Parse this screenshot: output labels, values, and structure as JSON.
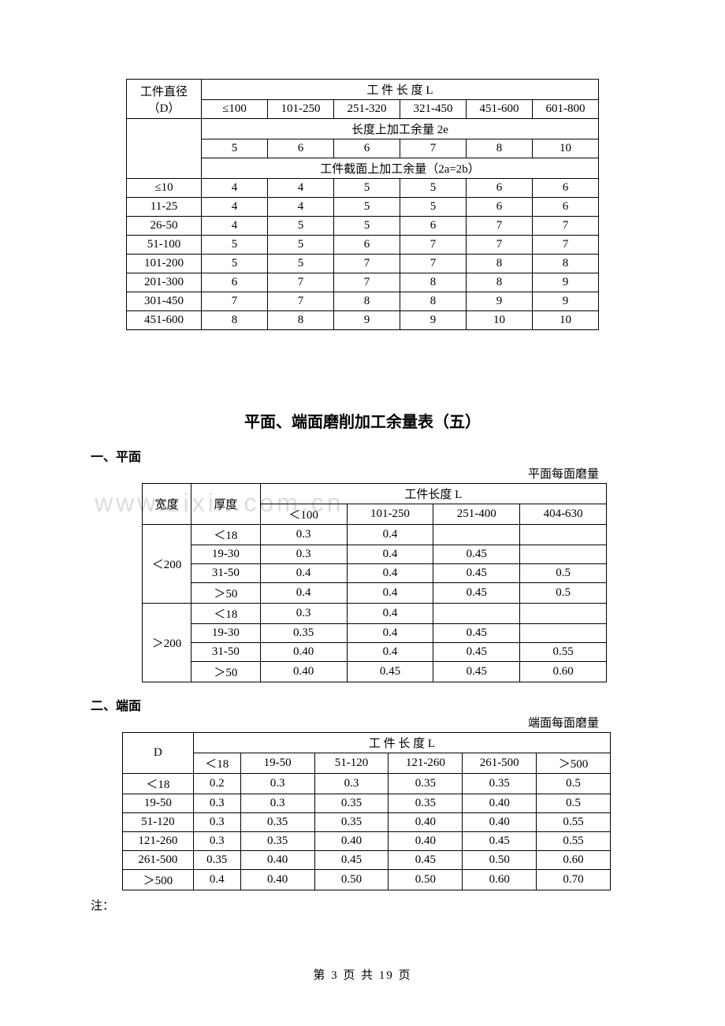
{
  "watermark": "www.zixin.com.cn",
  "table1": {
    "header_d": "工件直径（D）",
    "header_l": "工 件 长 度 L",
    "length_cols": [
      "≤100",
      "101-250",
      "251-320",
      "321-450",
      "451-600",
      "601-800"
    ],
    "row_2e_label": "长度上加工余量 2e",
    "row_2e_values": [
      "5",
      "6",
      "6",
      "7",
      "8",
      "10"
    ],
    "row_2a2b_label": "工件截面上加工余量（2a=2b）",
    "diameter_labels": [
      "≤10",
      "11-25",
      "26-50",
      "51-100",
      "101-200",
      "201-300",
      "301-450",
      "451-600"
    ],
    "rows": [
      [
        "4",
        "4",
        "5",
        "5",
        "6",
        "6"
      ],
      [
        "4",
        "4",
        "5",
        "5",
        "6",
        "6"
      ],
      [
        "4",
        "5",
        "5",
        "6",
        "7",
        "7"
      ],
      [
        "5",
        "5",
        "6",
        "7",
        "7",
        "7"
      ],
      [
        "5",
        "5",
        "7",
        "7",
        "8",
        "8"
      ],
      [
        "6",
        "7",
        "7",
        "8",
        "8",
        "9"
      ],
      [
        "7",
        "7",
        "8",
        "8",
        "9",
        "9"
      ],
      [
        "8",
        "8",
        "9",
        "9",
        "10",
        "10"
      ]
    ]
  },
  "heading5": "平面、端面磨削加工余量表（五）",
  "section1": {
    "title": "一、平面",
    "caption": "平面每面磨量",
    "header_w": "宽度",
    "header_t": "厚度",
    "header_l": "工件长度 L",
    "length_cols": [
      "＜100",
      "101-250",
      "251-400",
      "404-630"
    ],
    "widths": [
      "＜200",
      "＞200"
    ],
    "thickness": [
      "＜18",
      "19-30",
      "31-50",
      "＞50"
    ],
    "rows_a": [
      [
        "0.3",
        "0.4",
        "",
        ""
      ],
      [
        "0.3",
        "0.4",
        "0.45",
        ""
      ],
      [
        "0.4",
        "0.4",
        "0.45",
        "0.5"
      ],
      [
        "0.4",
        "0.4",
        "0.45",
        "0.5"
      ]
    ],
    "rows_b": [
      [
        "0.3",
        "0.4",
        "",
        ""
      ],
      [
        "0.35",
        "0.4",
        "0.45",
        ""
      ],
      [
        "0.40",
        "0.4",
        "0.45",
        "0.55"
      ],
      [
        "0.40",
        "0.45",
        "0.45",
        "0.60"
      ]
    ]
  },
  "section2": {
    "title": "二、端面",
    "caption": "端面每面磨量",
    "header_d": "D",
    "header_l": "工 件 长 度 L",
    "length_cols": [
      "＜18",
      "19-50",
      "51-120",
      "121-260",
      "261-500",
      "＞500"
    ],
    "d_labels": [
      "＜18",
      "19-50",
      "51-120",
      "121-260",
      "261-500",
      "＞500"
    ],
    "rows": [
      [
        "0.2",
        "0.3",
        "0.3",
        "0.35",
        "0.35",
        "0.5"
      ],
      [
        "0.3",
        "0.3",
        "0.35",
        "0.35",
        "0.40",
        "0.5"
      ],
      [
        "0.3",
        "0.35",
        "0.35",
        "0.40",
        "0.40",
        "0.55"
      ],
      [
        "0.3",
        "0.35",
        "0.40",
        "0.40",
        "0.45",
        "0.55"
      ],
      [
        "0.35",
        "0.40",
        "0.45",
        "0.45",
        "0.50",
        "0.60"
      ],
      [
        "0.4",
        "0.40",
        "0.50",
        "0.50",
        "0.60",
        "0.70"
      ]
    ]
  },
  "note": "注：",
  "footer": "第 3 页 共 19 页"
}
